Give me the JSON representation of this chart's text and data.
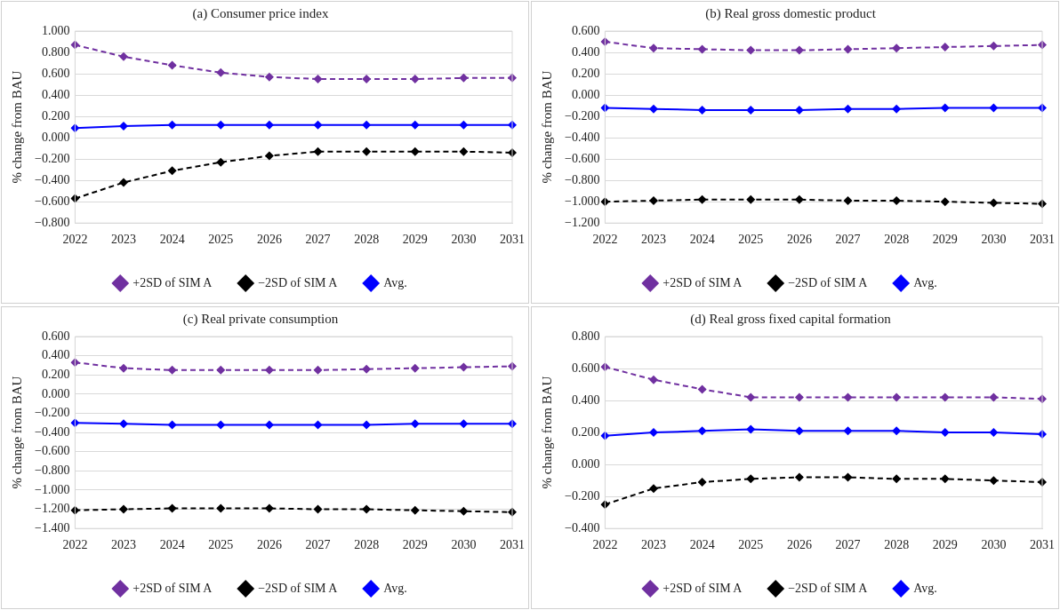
{
  "chart_data": [
    {
      "type": "line",
      "title": "(a) Consumer price index",
      "ylabel": "% change from BAU",
      "categories": [
        "2022",
        "2023",
        "2024",
        "2025",
        "2026",
        "2027",
        "2028",
        "2029",
        "2030",
        "2031"
      ],
      "ylim": [
        -0.8,
        1.0
      ],
      "yticks": [
        {
          "value": -0.8,
          "label": "−0.800"
        },
        {
          "value": -0.6,
          "label": "−0.600"
        },
        {
          "value": -0.4,
          "label": "−0.400"
        },
        {
          "value": -0.2,
          "label": "−0.200"
        },
        {
          "value": 0,
          "label": "0.000"
        },
        {
          "value": 0.2,
          "label": "0.200"
        },
        {
          "value": 0.4,
          "label": "0.400"
        },
        {
          "value": 0.6,
          "label": "0.600"
        },
        {
          "value": 0.8,
          "label": "0.800"
        },
        {
          "value": 1.0,
          "label": "1.000"
        }
      ],
      "grid": "y",
      "legend": "bottom",
      "marker": "diamond",
      "series": [
        {
          "name": "+2SD of SIM A",
          "color": "#7030a0",
          "line_style": "dashed",
          "values": [
            0.87,
            0.76,
            0.68,
            0.61,
            0.57,
            0.55,
            0.55,
            0.55,
            0.56,
            0.56
          ]
        },
        {
          "name": "−2SD of SIM A",
          "color": "#000000",
          "line_style": "dashed",
          "values": [
            -0.57,
            -0.42,
            -0.31,
            -0.23,
            -0.17,
            -0.13,
            -0.13,
            -0.13,
            -0.13,
            -0.14
          ]
        },
        {
          "name": "Avg.",
          "color": "#0000ff",
          "line_style": "solid",
          "values": [
            0.09,
            0.11,
            0.12,
            0.12,
            0.12,
            0.12,
            0.12,
            0.12,
            0.12,
            0.12
          ]
        }
      ]
    },
    {
      "type": "line",
      "title": "(b) Real gross domestic product",
      "ylabel": "% change from BAU",
      "categories": [
        "2022",
        "2023",
        "2024",
        "2025",
        "2026",
        "2027",
        "2028",
        "2029",
        "2030",
        "2031"
      ],
      "ylim": [
        -1.2,
        0.6
      ],
      "yticks": [
        {
          "value": -1.2,
          "label": "−1.200"
        },
        {
          "value": -1.0,
          "label": "−1.000"
        },
        {
          "value": -0.8,
          "label": "−0.800"
        },
        {
          "value": -0.6,
          "label": "−0.600"
        },
        {
          "value": -0.4,
          "label": "−0.400"
        },
        {
          "value": -0.2,
          "label": "−0.200"
        },
        {
          "value": 0,
          "label": "0.000"
        },
        {
          "value": 0.2,
          "label": "0.200"
        },
        {
          "value": 0.4,
          "label": "0.400"
        },
        {
          "value": 0.6,
          "label": "0.600"
        }
      ],
      "grid": "y",
      "legend": "bottom",
      "marker": "diamond",
      "series": [
        {
          "name": "+2SD of SIM A",
          "color": "#7030a0",
          "line_style": "dashed",
          "values": [
            0.5,
            0.44,
            0.43,
            0.42,
            0.42,
            0.43,
            0.44,
            0.45,
            0.46,
            0.47
          ]
        },
        {
          "name": "−2SD of SIM A",
          "color": "#000000",
          "line_style": "dashed",
          "values": [
            -1.0,
            -0.99,
            -0.98,
            -0.98,
            -0.98,
            -0.99,
            -0.99,
            -1.0,
            -1.01,
            -1.02
          ]
        },
        {
          "name": "Avg.",
          "color": "#0000ff",
          "line_style": "solid",
          "values": [
            -0.12,
            -0.13,
            -0.14,
            -0.14,
            -0.14,
            -0.13,
            -0.13,
            -0.12,
            -0.12,
            -0.12
          ]
        }
      ]
    },
    {
      "type": "line",
      "title": "(c) Real private consumption",
      "ylabel": "% change from BAU",
      "categories": [
        "2022",
        "2023",
        "2024",
        "2025",
        "2026",
        "2027",
        "2028",
        "2029",
        "2030",
        "2031"
      ],
      "ylim": [
        -1.4,
        0.6
      ],
      "yticks": [
        {
          "value": -1.4,
          "label": "−1.400"
        },
        {
          "value": -1.2,
          "label": "−1.200"
        },
        {
          "value": -1.0,
          "label": "−1.000"
        },
        {
          "value": -0.8,
          "label": "−0.800"
        },
        {
          "value": -0.6,
          "label": "−0.600"
        },
        {
          "value": -0.4,
          "label": "−0.400"
        },
        {
          "value": -0.2,
          "label": "−0.200"
        },
        {
          "value": 0,
          "label": "0.000"
        },
        {
          "value": 0.2,
          "label": "0.200"
        },
        {
          "value": 0.4,
          "label": "0.400"
        },
        {
          "value": 0.6,
          "label": "0.600"
        }
      ],
      "grid": "y",
      "legend": "bottom",
      "marker": "diamond",
      "series": [
        {
          "name": "+2SD of SIM A",
          "color": "#7030a0",
          "line_style": "dashed",
          "values": [
            0.33,
            0.27,
            0.25,
            0.25,
            0.25,
            0.25,
            0.26,
            0.27,
            0.28,
            0.29
          ]
        },
        {
          "name": "−2SD of SIM A",
          "color": "#000000",
          "line_style": "dashed",
          "values": [
            -1.21,
            -1.2,
            -1.19,
            -1.19,
            -1.19,
            -1.2,
            -1.2,
            -1.21,
            -1.22,
            -1.23
          ]
        },
        {
          "name": "Avg.",
          "color": "#0000ff",
          "line_style": "solid",
          "values": [
            -0.3,
            -0.31,
            -0.32,
            -0.32,
            -0.32,
            -0.32,
            -0.32,
            -0.31,
            -0.31,
            -0.31
          ]
        }
      ]
    },
    {
      "type": "line",
      "title": "(d) Real gross fixed capital formation",
      "ylabel": "% change from BAU",
      "categories": [
        "2022",
        "2023",
        "2024",
        "2025",
        "2026",
        "2027",
        "2028",
        "2029",
        "2030",
        "2031"
      ],
      "ylim": [
        -0.4,
        0.8
      ],
      "yticks": [
        {
          "value": -0.4,
          "label": "−0.400"
        },
        {
          "value": -0.2,
          "label": "−0.200"
        },
        {
          "value": 0,
          "label": "0.000"
        },
        {
          "value": 0.2,
          "label": "0.200"
        },
        {
          "value": 0.4,
          "label": "0.400"
        },
        {
          "value": 0.6,
          "label": "0.600"
        },
        {
          "value": 0.8,
          "label": "0.800"
        }
      ],
      "grid": "y",
      "legend": "bottom",
      "marker": "diamond",
      "series": [
        {
          "name": "+2SD of SIM A",
          "color": "#7030a0",
          "line_style": "dashed",
          "values": [
            0.61,
            0.53,
            0.47,
            0.42,
            0.42,
            0.42,
            0.42,
            0.42,
            0.42,
            0.41
          ]
        },
        {
          "name": "−2SD of SIM A",
          "color": "#000000",
          "line_style": "dashed",
          "values": [
            -0.25,
            -0.15,
            -0.11,
            -0.09,
            -0.08,
            -0.08,
            -0.09,
            -0.09,
            -0.1,
            -0.11
          ]
        },
        {
          "name": "Avg.",
          "color": "#0000ff",
          "line_style": "solid",
          "values": [
            0.18,
            0.2,
            0.21,
            0.22,
            0.21,
            0.21,
            0.21,
            0.2,
            0.2,
            0.19
          ]
        }
      ]
    }
  ]
}
